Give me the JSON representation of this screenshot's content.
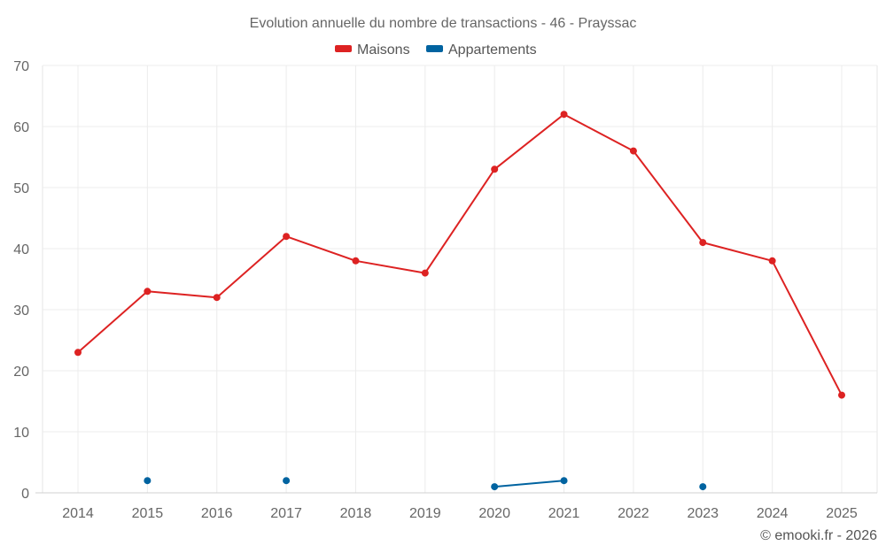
{
  "chart_data": {
    "type": "line",
    "title": "Evolution annuelle du nombre de transactions - 46 - Prayssac",
    "xlabel": "",
    "ylabel": "",
    "x": [
      "2014",
      "2015",
      "2016",
      "2017",
      "2018",
      "2019",
      "2020",
      "2021",
      "2022",
      "2023",
      "2024",
      "2025"
    ],
    "ylim": [
      0,
      70
    ],
    "yticks": [
      0,
      10,
      20,
      30,
      40,
      50,
      60,
      70
    ],
    "grid": true,
    "legend_position": "top-center",
    "series": [
      {
        "name": "Maisons",
        "color": "#dd2222",
        "values": [
          23,
          33,
          32,
          42,
          38,
          36,
          53,
          62,
          56,
          41,
          38,
          16
        ]
      },
      {
        "name": "Appartements",
        "color": "#0063a0",
        "values": [
          null,
          2,
          null,
          2,
          null,
          null,
          1,
          2,
          null,
          1,
          null,
          null
        ]
      }
    ]
  },
  "credit": "© emooki.fr - 2026"
}
